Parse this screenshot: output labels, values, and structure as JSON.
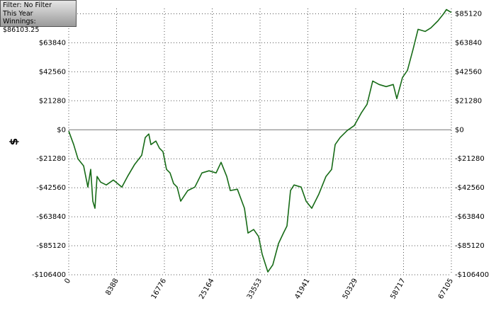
{
  "chart_data": {
    "type": "line",
    "info": [
      "Filter: No Filter",
      "This Year",
      "Winnings: $86103.25"
    ],
    "ylabel": "$",
    "color": "#176b17",
    "x": [
      0,
      870,
      1616,
      2610,
      3355,
      3852,
      4225,
      4598,
      4971,
      5592,
      6586,
      7829,
      9320,
      10314,
      11557,
      12800,
      13422,
      14043,
      14416,
      15286,
      15907,
      16528,
      17150,
      17771,
      18393,
      19014,
      19635,
      20878,
      22121,
      23363,
      24606,
      25849,
      26719,
      27713,
      28334,
      29577,
      30820,
      31441,
      32435,
      33305,
      33926,
      34920,
      35790,
      36784,
      37654,
      38275,
      38896,
      39517,
      40760,
      41630,
      42624,
      43867,
      45109,
      46104,
      46725,
      47595,
      48838,
      50080,
      51323,
      52317,
      53311,
      54430,
      55673,
      56916,
      57537,
      58531,
      59401,
      60395,
      61265,
      62508,
      63502,
      64745,
      65739,
      66236,
      67105
    ],
    "values": [
      -1000,
      -10900,
      -21280,
      -26470,
      -42040,
      -29060,
      -52420,
      -57610,
      -34250,
      -38400,
      -40480,
      -36850,
      -42040,
      -34250,
      -25430,
      -18680,
      -5710,
      -3110,
      -10900,
      -8300,
      -13490,
      -16090,
      -29060,
      -31660,
      -39440,
      -42040,
      -52420,
      -44630,
      -42040,
      -31660,
      -30100,
      -31660,
      -23870,
      -34250,
      -44630,
      -43600,
      -57610,
      -75770,
      -73180,
      -78370,
      -91340,
      -104320,
      -99130,
      -83560,
      -75770,
      -70580,
      -44630,
      -40480,
      -42040,
      -52420,
      -57610,
      -47230,
      -34250,
      -29060,
      -10900,
      -5710,
      -520,
      3110,
      12460,
      18680,
      35810,
      33220,
      31660,
      33220,
      22840,
      38400,
      43600,
      59170,
      73700,
      72140,
      74740,
      79930,
      85120,
      88230,
      86103.25
    ],
    "xlim": [
      0,
      67105
    ],
    "xticks": [
      0,
      8388,
      16776,
      25164,
      33553,
      41941,
      50329,
      58717,
      67105
    ],
    "ylim": [
      -106400,
      89000
    ],
    "yticks": [
      {
        "value": -106400,
        "label": "-$106400"
      },
      {
        "value": -85120,
        "label": "-$85120"
      },
      {
        "value": -63840,
        "label": "-$63840"
      },
      {
        "value": -42560,
        "label": "-$42560"
      },
      {
        "value": -21280,
        "label": "-$21280"
      },
      {
        "value": 0,
        "label": "$0"
      },
      {
        "value": 21280,
        "label": "$21280"
      },
      {
        "value": 42560,
        "label": "$42560"
      },
      {
        "value": 63840,
        "label": "$63840"
      },
      {
        "value": 85120,
        "label": "$85120"
      }
    ],
    "grid": true
  }
}
